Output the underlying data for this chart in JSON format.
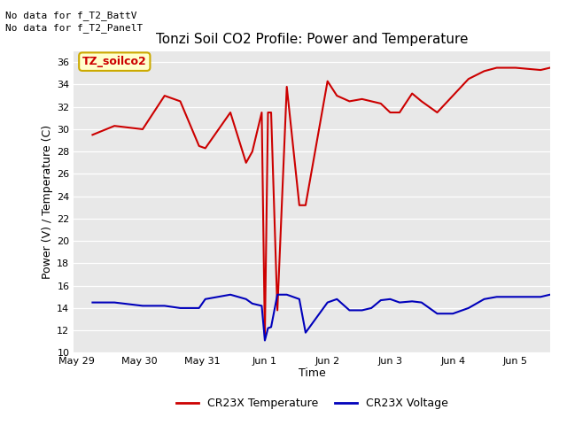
{
  "title": "Tonzi Soil CO2 Profile: Power and Temperature",
  "xlabel": "Time",
  "ylabel": "Power (V) / Temperature (C)",
  "no_data_text_1": "No data for f_T2_BattV",
  "no_data_text_2": "No data for f_T2_PanelT",
  "legend_label_text": "TZ_soilco2",
  "bg_color": "#e8e8e8",
  "red_color": "#cc0000",
  "blue_color": "#0000bb",
  "ylim": [
    10,
    37
  ],
  "xlim": [
    -0.05,
    7.55
  ],
  "yticks": [
    10,
    12,
    14,
    16,
    18,
    20,
    22,
    24,
    26,
    28,
    30,
    32,
    34,
    36
  ],
  "xtick_positions": [
    0,
    1,
    2,
    3,
    4,
    5,
    6,
    7
  ],
  "xtick_labels": [
    "May 29",
    "May 30",
    "May 31",
    "Jun 1",
    "Jun 2",
    "Jun 3",
    "Jun 4",
    "Jun 5"
  ],
  "legend_entries": [
    "CR23X Temperature",
    "CR23X Voltage"
  ],
  "red_x": [
    0.25,
    0.6,
    1.05,
    1.4,
    1.65,
    1.95,
    2.05,
    2.45,
    2.7,
    2.8,
    2.95,
    3.0,
    3.05,
    3.1,
    3.2,
    3.35,
    3.55,
    3.65,
    4.0,
    4.15,
    4.35,
    4.55,
    4.7,
    4.85,
    5.0,
    5.15,
    5.35,
    5.5,
    5.75,
    6.0,
    6.25,
    6.5,
    6.7,
    7.0,
    7.4,
    7.55
  ],
  "red_y": [
    29.5,
    30.3,
    30.0,
    33.0,
    32.5,
    28.5,
    28.3,
    31.5,
    27.0,
    28.0,
    31.5,
    11.5,
    31.5,
    31.5,
    13.8,
    33.8,
    23.2,
    23.2,
    34.3,
    33.0,
    32.5,
    32.7,
    32.5,
    32.3,
    31.5,
    31.5,
    33.2,
    32.5,
    31.5,
    33.0,
    34.5,
    35.2,
    35.5,
    35.5,
    35.3,
    35.5
  ],
  "blue_x": [
    0.25,
    0.6,
    1.05,
    1.4,
    1.65,
    1.95,
    2.05,
    2.45,
    2.7,
    2.8,
    2.95,
    3.0,
    3.05,
    3.1,
    3.2,
    3.35,
    3.55,
    3.65,
    4.0,
    4.15,
    4.35,
    4.55,
    4.7,
    4.85,
    5.0,
    5.15,
    5.35,
    5.5,
    5.75,
    6.0,
    6.25,
    6.5,
    6.7,
    7.0,
    7.4,
    7.55
  ],
  "blue_y": [
    14.5,
    14.5,
    14.2,
    14.2,
    14.0,
    14.0,
    14.8,
    15.2,
    14.8,
    14.4,
    14.2,
    11.1,
    12.2,
    12.3,
    15.2,
    15.2,
    14.8,
    11.8,
    14.5,
    14.8,
    13.8,
    13.8,
    14.0,
    14.7,
    14.8,
    14.5,
    14.6,
    14.5,
    13.5,
    13.5,
    14.0,
    14.8,
    15.0,
    15.0,
    15.0,
    15.2
  ]
}
